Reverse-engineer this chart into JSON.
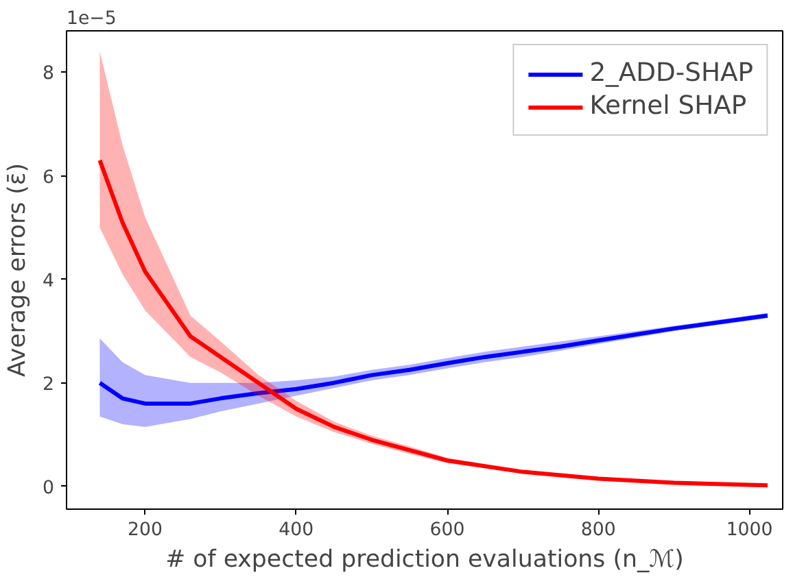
{
  "chart_data": {
    "type": "line",
    "xlabel": "# of expected prediction evaluations (n_ℳ)",
    "ylabel": "Average errors (ε̄)",
    "annotations": [
      "1e−5"
    ],
    "xlim": [
      96,
      1044
    ],
    "ylim": [
      -0.44,
      8.8
    ],
    "xticks": [
      200,
      400,
      600,
      800,
      1000
    ],
    "yticks": [
      0,
      2,
      4,
      6,
      8
    ],
    "grid": false,
    "legend": "top right",
    "series": [
      {
        "name": "2_ADD-SHAP",
        "color": "#0000ff",
        "x": [
          140,
          170,
          200,
          260,
          300,
          350,
          400,
          450,
          500,
          550,
          600,
          650,
          700,
          750,
          800,
          900,
          1024
        ],
        "values": [
          2.0,
          1.7,
          1.6,
          1.6,
          1.7,
          1.8,
          1.88,
          2.0,
          2.15,
          2.25,
          2.38,
          2.5,
          2.6,
          2.7,
          2.82,
          3.05,
          3.3
        ],
        "lower": [
          1.35,
          1.2,
          1.15,
          1.3,
          1.45,
          1.6,
          1.75,
          1.9,
          2.05,
          2.15,
          2.28,
          2.4,
          2.5,
          2.62,
          2.75,
          3.0,
          3.25
        ],
        "upper": [
          2.86,
          2.4,
          2.15,
          2.0,
          2.0,
          2.0,
          2.05,
          2.12,
          2.25,
          2.35,
          2.48,
          2.6,
          2.7,
          2.8,
          2.9,
          3.1,
          3.35
        ]
      },
      {
        "name": "Kernel SHAP",
        "color": "#ff0000",
        "x": [
          140,
          170,
          200,
          260,
          300,
          350,
          400,
          450,
          500,
          550,
          600,
          700,
          800,
          900,
          1024
        ],
        "values": [
          6.3,
          5.1,
          4.15,
          2.9,
          2.5,
          2.0,
          1.5,
          1.15,
          0.9,
          0.7,
          0.5,
          0.28,
          0.15,
          0.07,
          0.02
        ],
        "lower": [
          5.0,
          4.1,
          3.4,
          2.5,
          2.2,
          1.75,
          1.35,
          1.05,
          0.82,
          0.63,
          0.45,
          0.25,
          0.12,
          0.05,
          0.0
        ],
        "upper": [
          8.4,
          6.6,
          5.2,
          3.3,
          2.8,
          2.15,
          1.65,
          1.25,
          0.98,
          0.77,
          0.55,
          0.31,
          0.18,
          0.09,
          0.04
        ]
      }
    ]
  }
}
